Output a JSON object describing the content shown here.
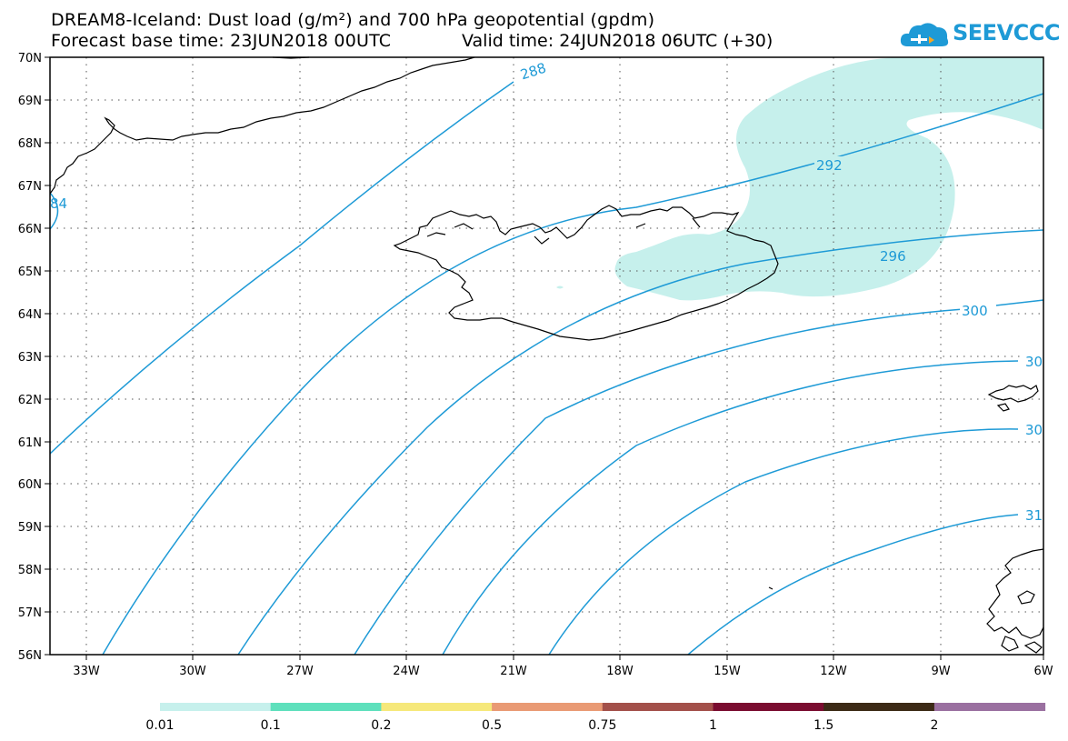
{
  "header": {
    "title_line1": "DREAM8-Iceland: Dust load (g/m²) and 700 hPa geopotential (gpdm)",
    "forecast_base": "Forecast base time: 23JUN2018 00UTC",
    "valid_time": "Valid time: 24JUN2018 06UTC (+30)"
  },
  "logo": {
    "text": "SEEVCCC",
    "icon": "cloud-logo-icon",
    "color": "#1e9ad6"
  },
  "map": {
    "lat_labels": [
      "70N",
      "69N",
      "68N",
      "67N",
      "66N",
      "65N",
      "64N",
      "63N",
      "62N",
      "61N",
      "60N",
      "59N",
      "58N",
      "57N",
      "56N"
    ],
    "lon_labels": [
      "33W",
      "30W",
      "27W",
      "24W",
      "21W",
      "18W",
      "15W",
      "12W",
      "9W",
      "6W"
    ],
    "contour_color": "#1e9ad6",
    "dust_fill_color": "#c6f0ec",
    "contour_labels": [
      "288",
      "292",
      "296",
      "300",
      "30",
      "30",
      "31",
      "84"
    ]
  },
  "colorbar": {
    "colors": [
      "#c6f0ec",
      "#5ee0bc",
      "#f6e87a",
      "#e99a74",
      "#a3504a",
      "#7a0c30",
      "#3c2a16",
      "#9a70a0"
    ],
    "labels": [
      "0.01",
      "0.1",
      "0.2",
      "0.5",
      "0.75",
      "1",
      "1.5",
      "2"
    ]
  }
}
